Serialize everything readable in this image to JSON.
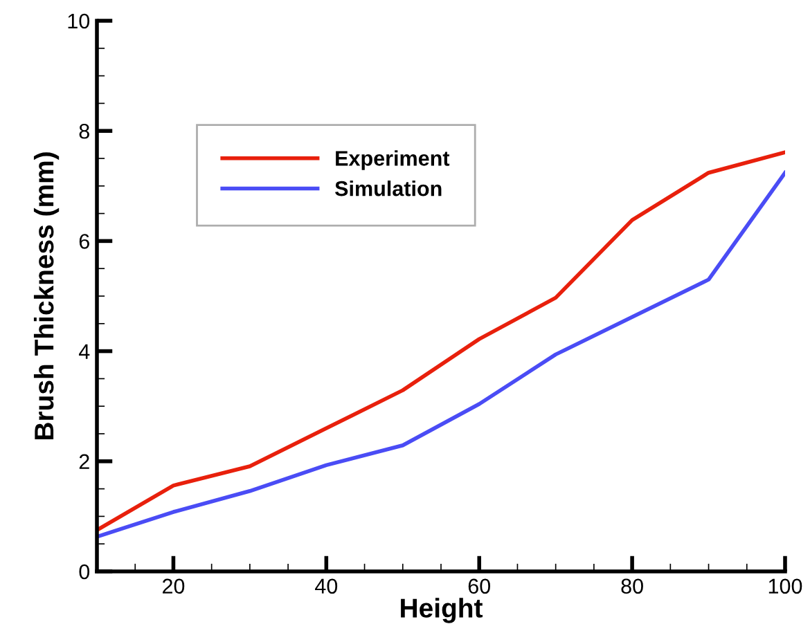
{
  "chart_data": {
    "type": "line",
    "xlabel": "Height",
    "ylabel": "Brush Thickness (mm)",
    "x": [
      10,
      20,
      30,
      40,
      50,
      60,
      70,
      80,
      90,
      100
    ],
    "series": [
      {
        "name": "Experiment",
        "color": "#e8200c",
        "values": [
          0.75,
          1.56,
          1.91,
          2.6,
          3.29,
          4.22,
          4.97,
          6.38,
          7.24,
          7.61
        ]
      },
      {
        "name": "Simulation",
        "color": "#4a4cf5",
        "values": [
          0.63,
          1.08,
          1.46,
          1.93,
          2.29,
          3.04,
          3.94,
          4.62,
          5.3,
          7.24
        ]
      }
    ],
    "xlim": [
      10,
      100
    ],
    "xticks": [
      20,
      40,
      60,
      80,
      100
    ],
    "ylim": [
      0,
      10
    ],
    "yticks": [
      0,
      2,
      4,
      6,
      8,
      10
    ],
    "grid": false,
    "legend": "top left",
    "line_style": "solid",
    "marker": "none"
  }
}
